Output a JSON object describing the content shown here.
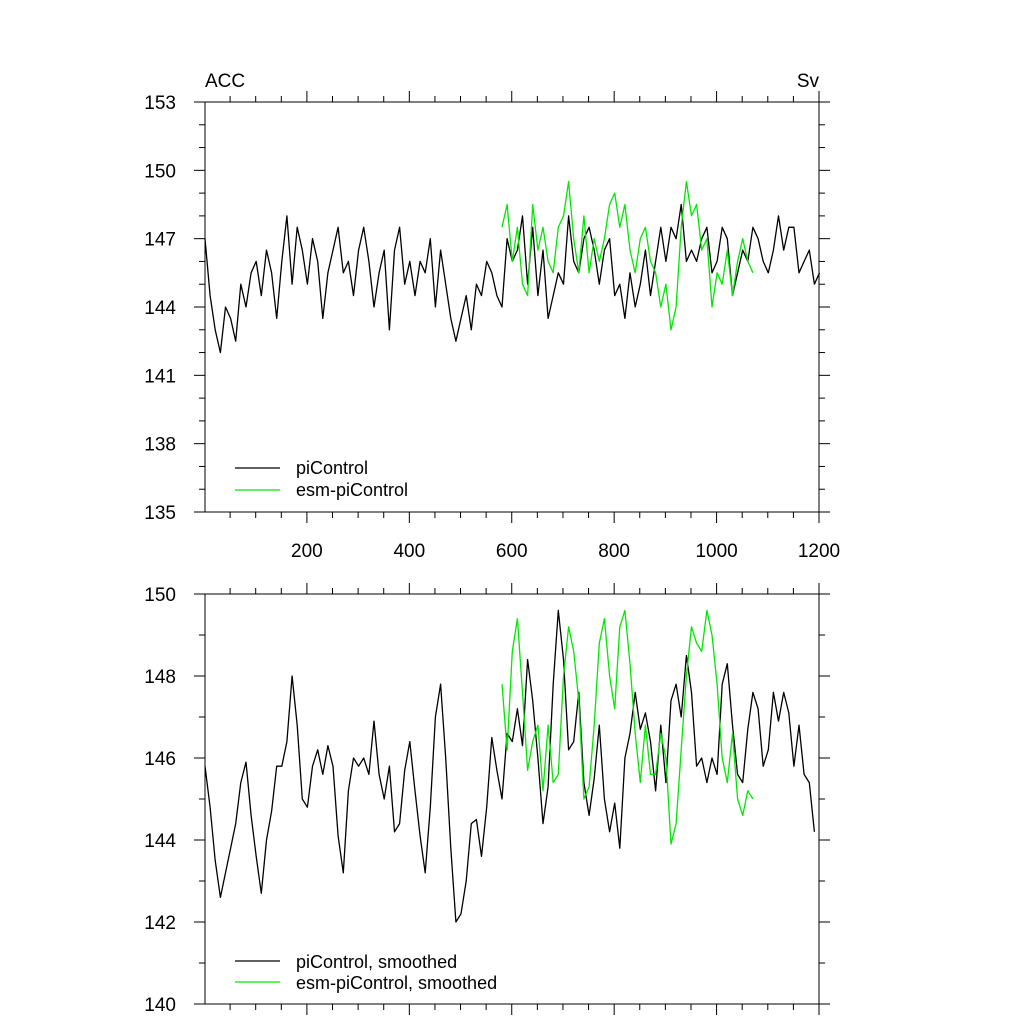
{
  "chart_data": [
    {
      "type": "line",
      "title_left": "ACC",
      "title_right": "Sv",
      "xlim": [
        1,
        1200
      ],
      "ylim": [
        135,
        153
      ],
      "xticks": [
        200,
        400,
        600,
        800,
        1000,
        1200
      ],
      "xtick_labels": [
        "200",
        "400",
        "600",
        "800",
        "1000",
        "1200"
      ],
      "yticks": [
        135,
        138,
        141,
        144,
        147,
        150,
        153
      ],
      "ytick_labels": [
        "135",
        "138",
        "141",
        "144",
        "147",
        "150",
        "153"
      ],
      "legend_position": "bottom-left",
      "series": [
        {
          "name": "piControl",
          "color": "#000000",
          "x_start": 1,
          "x_step": 10,
          "values": [
            147.0,
            144.5,
            143.0,
            142.0,
            144.0,
            143.5,
            142.5,
            145.0,
            144.0,
            145.5,
            146.0,
            144.5,
            146.5,
            145.5,
            143.5,
            146.0,
            148.0,
            145.0,
            147.5,
            146.5,
            145.0,
            147.0,
            146.0,
            143.5,
            145.5,
            146.5,
            147.5,
            145.5,
            146.0,
            144.5,
            146.5,
            147.5,
            146.0,
            144.0,
            145.5,
            146.5,
            143.0,
            146.5,
            147.5,
            145.0,
            146.0,
            144.5,
            146.0,
            145.5,
            147.0,
            144.0,
            146.5,
            145.0,
            143.5,
            142.5,
            143.5,
            144.5,
            143.0,
            145.0,
            144.5,
            146.0,
            145.5,
            144.5,
            144.0,
            147.0,
            146.0,
            146.5,
            148.0,
            145.0,
            147.5,
            144.5,
            146.5,
            143.5,
            144.5,
            145.5,
            145.0,
            148.0,
            146.0,
            145.5,
            147.0,
            147.5,
            146.5,
            145.0,
            146.5,
            147.0,
            144.5,
            145.0,
            143.5,
            145.5,
            144.0,
            145.0,
            146.5,
            144.5,
            146.0,
            147.5,
            146.0,
            147.5,
            147.0,
            148.5,
            146.0,
            146.5,
            146.0,
            147.0,
            147.5,
            145.5,
            146.0,
            147.5,
            147.0,
            144.5,
            145.5,
            146.5,
            146.0,
            147.5,
            147.0,
            146.0,
            145.5,
            146.5,
            148.0,
            146.5,
            147.5,
            147.5,
            145.5,
            146.0,
            146.5,
            145.0,
            145.5
          ]
        },
        {
          "name": "esm-piControl",
          "color": "#00e800",
          "x_start": 581,
          "x_step": 10,
          "values": [
            147.5,
            148.5,
            146.0,
            147.5,
            145.0,
            144.5,
            148.5,
            146.5,
            147.5,
            146.0,
            145.5,
            147.5,
            148.0,
            149.5,
            147.0,
            145.5,
            148.0,
            145.5,
            147.0,
            146.0,
            147.0,
            148.5,
            149.0,
            147.5,
            148.5,
            146.5,
            145.5,
            147.0,
            147.5,
            146.0,
            145.5,
            144.0,
            145.0,
            143.0,
            144.0,
            147.5,
            149.5,
            148.0,
            148.5,
            146.5,
            147.0,
            144.0,
            145.5,
            145.0,
            146.5,
            144.5,
            146.0,
            147.0,
            146.0,
            145.5
          ]
        }
      ]
    },
    {
      "type": "line",
      "xlim": [
        1,
        1200
      ],
      "ylim": [
        140,
        150
      ],
      "yticks": [
        140,
        142,
        144,
        146,
        148,
        150
      ],
      "ytick_labels": [
        "140",
        "142",
        "144",
        "146",
        "148",
        "150"
      ],
      "legend_position": "bottom-left",
      "series": [
        {
          "name": "piControl, smoothed",
          "color": "#000000",
          "x_start": 1,
          "x_step": 10,
          "values": [
            145.8,
            144.8,
            143.5,
            142.6,
            143.2,
            143.8,
            144.4,
            145.4,
            145.9,
            144.6,
            143.6,
            142.7,
            144.0,
            144.7,
            145.8,
            145.8,
            146.4,
            148.0,
            146.8,
            145.0,
            144.8,
            145.8,
            146.2,
            145.6,
            146.3,
            145.8,
            144.1,
            143.2,
            145.2,
            146.0,
            145.8,
            146.0,
            145.6,
            146.9,
            145.6,
            145.0,
            145.8,
            144.2,
            144.4,
            145.7,
            146.4,
            145.2,
            144.1,
            143.2,
            144.8,
            147.0,
            147.8,
            146.0,
            143.8,
            142.0,
            142.2,
            143.0,
            144.4,
            144.5,
            143.6,
            144.8,
            146.5,
            145.7,
            145.0,
            146.6,
            146.4,
            147.2,
            146.3,
            148.4,
            147.4,
            146.0,
            144.4,
            145.3,
            147.8,
            149.6,
            148.4,
            146.2,
            146.4,
            147.6,
            145.4,
            144.6,
            145.5,
            146.8,
            145.0,
            144.2,
            144.9,
            143.8,
            146.0,
            146.6,
            147.6,
            146.7,
            147.1,
            146.4,
            145.2,
            146.8,
            145.4,
            147.4,
            147.8,
            147.0,
            148.5,
            147.6,
            145.8,
            146.0,
            145.4,
            146.0,
            145.6,
            147.8,
            148.3,
            146.8,
            145.6,
            145.4,
            146.7,
            147.6,
            147.2,
            145.8,
            146.2,
            147.6,
            146.9,
            147.6,
            147.1,
            145.8,
            146.8,
            145.6,
            145.4,
            144.2
          ]
        },
        {
          "name": "esm-piControl, smoothed",
          "color": "#00e800",
          "x_start": 581,
          "x_step": 10,
          "values": [
            147.8,
            146.2,
            148.6,
            149.4,
            147.6,
            145.7,
            146.4,
            146.8,
            145.2,
            146.8,
            145.4,
            145.6,
            148.0,
            149.2,
            148.6,
            147.4,
            145.0,
            145.3,
            146.8,
            148.8,
            149.4,
            148.0,
            147.2,
            149.2,
            149.6,
            148.3,
            146.6,
            145.4,
            146.8,
            145.6,
            145.6,
            146.6,
            146.0,
            143.9,
            144.4,
            146.2,
            148.0,
            149.2,
            148.8,
            148.6,
            149.6,
            149.0,
            147.8,
            146.0,
            145.4,
            146.6,
            145.0,
            144.6,
            145.2,
            145.0
          ]
        }
      ]
    }
  ]
}
